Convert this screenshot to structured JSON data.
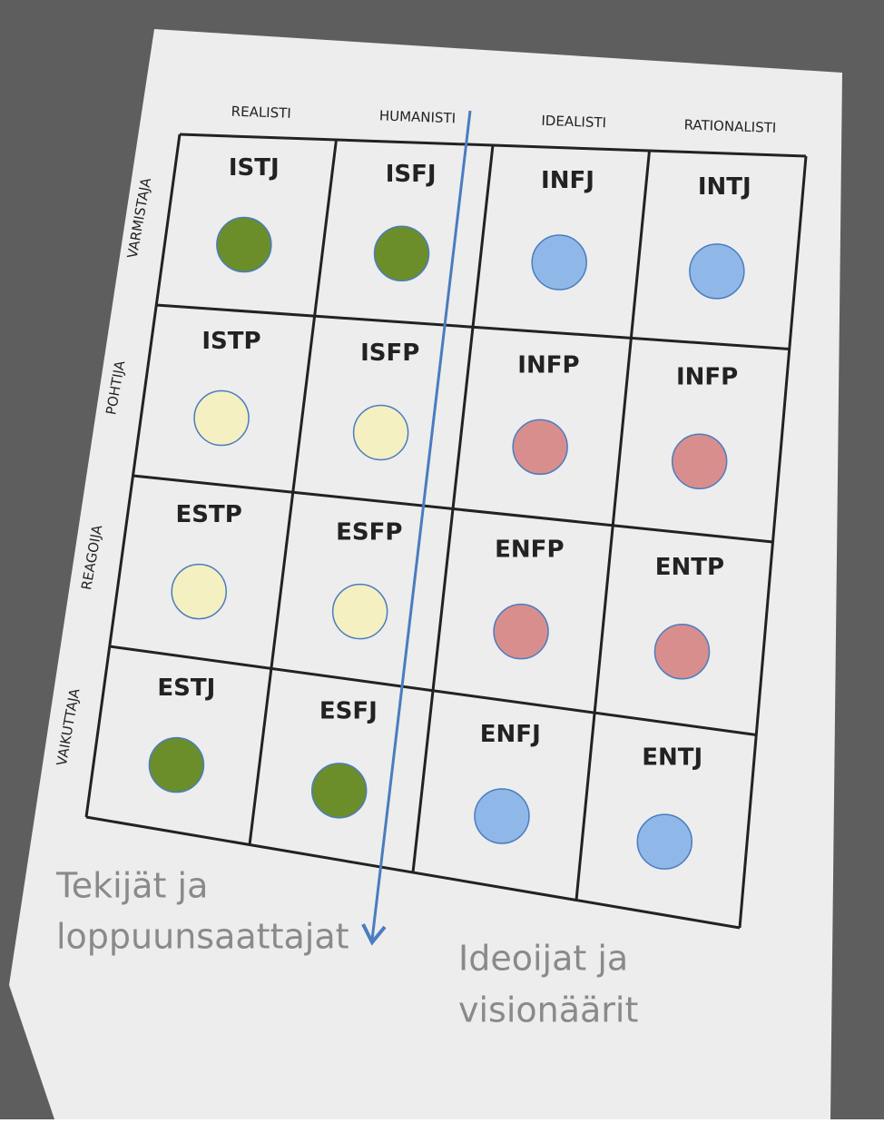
{
  "grid": {
    "columns": [
      "REALISTI",
      "HUMANISTI",
      "IDEALISTI",
      "RATIONALISTI"
    ],
    "rows": [
      "VARMISTAJA",
      "POHTIJA",
      "REAGOIJA",
      "VAIKUTTAJA"
    ],
    "cells": [
      [
        {
          "label": "ISTJ",
          "color": "#6b8e2a"
        },
        {
          "label": "ISFJ",
          "color": "#6b8e2a"
        },
        {
          "label": "INFJ",
          "color": "#8fb8e8"
        },
        {
          "label": "INTJ",
          "color": "#8fb8e8"
        }
      ],
      [
        {
          "label": "ISTP",
          "color": "#f4f0c2"
        },
        {
          "label": "ISFP",
          "color": "#f4f0c2"
        },
        {
          "label": "INFP",
          "color": "#d98e8e"
        },
        {
          "label": "INFP",
          "color": "#d98e8e"
        }
      ],
      [
        {
          "label": "ESTP",
          "color": "#f4f0c2"
        },
        {
          "label": "ESFP",
          "color": "#f4f0c2"
        },
        {
          "label": "ENFP",
          "color": "#d98e8e"
        },
        {
          "label": "ENTP",
          "color": "#d98e8e"
        }
      ],
      [
        {
          "label": "ESTJ",
          "color": "#6b8e2a"
        },
        {
          "label": "ESFJ",
          "color": "#6b8e2a"
        },
        {
          "label": "ENFJ",
          "color": "#8fb8e8"
        },
        {
          "label": "ENTJ",
          "color": "#8fb8e8"
        }
      ]
    ]
  },
  "annotations": {
    "left": [
      "Tekijät ja",
      "loppuunsaattajat"
    ],
    "right": [
      "Ideoijat ja",
      "visionäärit"
    ]
  }
}
